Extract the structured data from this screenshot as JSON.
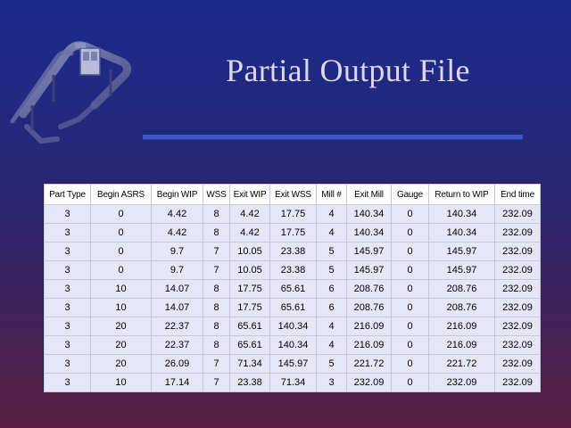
{
  "slide": {
    "title": "Partial Output File"
  },
  "colors": {
    "background_top": "#1c2a8c",
    "background_bottom": "#5a1f42",
    "title": "#dcd8f2",
    "rule": "#3c55c8",
    "cell_fill": "#e6e6f8"
  },
  "logo": {
    "icon": "conveyor-machine-icon"
  },
  "table": {
    "columns": [
      "Part Type",
      "Begin ASRS",
      "Begin WIP",
      "WSS",
      "Exit WIP",
      "Exit WSS",
      "Mill #",
      "Exit Mill",
      "Gauge",
      "Return to WIP",
      "End time"
    ],
    "rows": [
      [
        "3",
        "0",
        "4.42",
        "8",
        "4.42",
        "17.75",
        "4",
        "140.34",
        "0",
        "140.34",
        "232.09"
      ],
      [
        "3",
        "0",
        "4.42",
        "8",
        "4.42",
        "17.75",
        "4",
        "140.34",
        "0",
        "140.34",
        "232.09"
      ],
      [
        "3",
        "0",
        "9.7",
        "7",
        "10.05",
        "23.38",
        "5",
        "145.97",
        "0",
        "145.97",
        "232.09"
      ],
      [
        "3",
        "0",
        "9.7",
        "7",
        "10.05",
        "23.38",
        "5",
        "145.97",
        "0",
        "145.97",
        "232.09"
      ],
      [
        "3",
        "10",
        "14.07",
        "8",
        "17.75",
        "65.61",
        "6",
        "208.76",
        "0",
        "208.76",
        "232.09"
      ],
      [
        "3",
        "10",
        "14.07",
        "8",
        "17.75",
        "65.61",
        "6",
        "208.76",
        "0",
        "208.76",
        "232.09"
      ],
      [
        "3",
        "20",
        "22.37",
        "8",
        "65.61",
        "140.34",
        "4",
        "216.09",
        "0",
        "216.09",
        "232.09"
      ],
      [
        "3",
        "20",
        "22.37",
        "8",
        "65.61",
        "140.34",
        "4",
        "216.09",
        "0",
        "216.09",
        "232.09"
      ],
      [
        "3",
        "20",
        "26.09",
        "7",
        "71.34",
        "145.97",
        "5",
        "221.72",
        "0",
        "221.72",
        "232.09"
      ],
      [
        "3",
        "10",
        "17.14",
        "7",
        "23.38",
        "71.34",
        "3",
        "232.09",
        "0",
        "232.09",
        "232.09"
      ]
    ]
  }
}
